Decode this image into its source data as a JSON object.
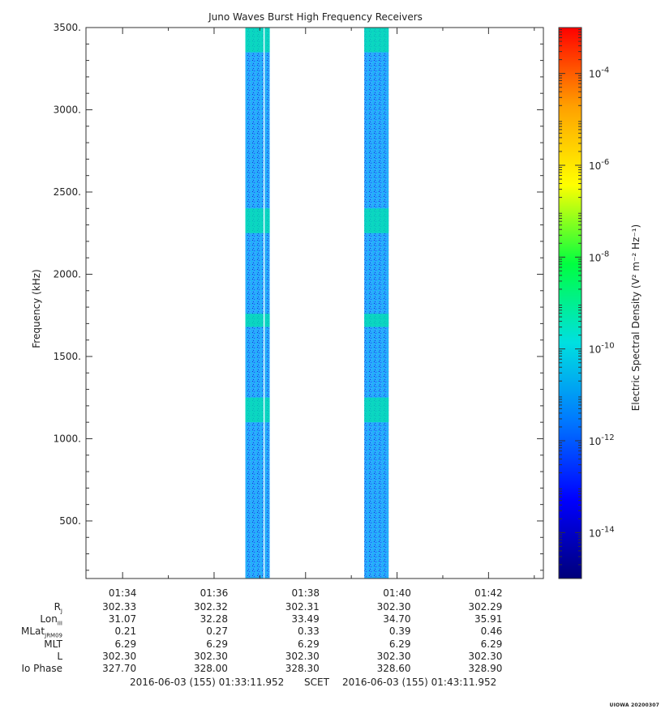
{
  "chart_data": {
    "type": "heatmap",
    "title": "Juno Waves Burst High Frequency Receivers",
    "ylabel": "Frequency (kHz)",
    "ylim": [
      150,
      3500
    ],
    "y_ticks": [
      "500.",
      "1000.",
      "1500.",
      "2000.",
      "2500.",
      "3000.",
      "3500."
    ],
    "y_tick_values": [
      500,
      1000,
      1500,
      2000,
      2500,
      3000,
      3500
    ],
    "xlim": [
      "01:33:11.952",
      "01:43:11.952"
    ],
    "x_ticks": [
      "01:34",
      "01:36",
      "01:38",
      "01:40",
      "01:42"
    ],
    "colorbar": {
      "label": "Electric Spectral Density (V² m⁻² Hz⁻¹)",
      "scale": "log",
      "range": [
        1e-15,
        0.001
      ],
      "ticks": [
        {
          "base": "10",
          "exp": "-4",
          "value": 0.0001
        },
        {
          "base": "10",
          "exp": "-6",
          "value": 1e-06
        },
        {
          "base": "10",
          "exp": "-8",
          "value": 1e-08
        },
        {
          "base": "10",
          "exp": "-10",
          "value": 1e-10
        },
        {
          "base": "10",
          "exp": "-12",
          "value": 1e-12
        },
        {
          "base": "10",
          "exp": "-14",
          "value": 1e-14
        }
      ],
      "colors": [
        "#00007a",
        "#0000ff",
        "#0078ff",
        "#00e0e0",
        "#00ff40",
        "#ffff00",
        "#ffa000",
        "#ff0000"
      ]
    },
    "data_blocks": [
      {
        "start": "01:36:41",
        "end": "01:37:13",
        "level": 1e-12
      },
      {
        "start": "01:39:17",
        "end": "01:39:49",
        "level": 1e-12
      }
    ],
    "enhanced_bands_khz": [
      {
        "low": 1680,
        "high": 1760,
        "level": 1e-11
      },
      {
        "low": 2250,
        "high": 2400,
        "level": 1e-11
      },
      {
        "low": 1100,
        "high": 1250,
        "level": 1e-11
      },
      {
        "low": 3350,
        "high": 3500,
        "level": 1e-11
      }
    ]
  },
  "ephemeris": {
    "labels": [
      {
        "main": "R",
        "sub": "J"
      },
      {
        "main": "Lon",
        "sub": "III"
      },
      {
        "main": "MLat",
        "sub": "JRM09"
      },
      {
        "main": "MLT",
        "sub": ""
      },
      {
        "main": "L",
        "sub": ""
      },
      {
        "main": "Io Phase",
        "sub": ""
      }
    ],
    "columns": [
      [
        "302.33",
        "31.07",
        "0.21",
        "6.29",
        "302.30",
        "327.70"
      ],
      [
        "302.32",
        "32.28",
        "0.27",
        "6.29",
        "302.30",
        "328.00"
      ],
      [
        "302.31",
        "33.49",
        "0.33",
        "6.29",
        "302.30",
        "328.30"
      ],
      [
        "302.30",
        "34.70",
        "0.39",
        "6.29",
        "302.30",
        "328.60"
      ],
      [
        "302.29",
        "35.91",
        "0.46",
        "6.29",
        "302.30",
        "328.90"
      ]
    ]
  },
  "footer": {
    "start": "2016-06-03 (155) 01:33:11.952",
    "scet": "SCET",
    "end": "2016-06-03 (155) 01:43:11.952"
  },
  "stamp": "UIOWA 20200307"
}
